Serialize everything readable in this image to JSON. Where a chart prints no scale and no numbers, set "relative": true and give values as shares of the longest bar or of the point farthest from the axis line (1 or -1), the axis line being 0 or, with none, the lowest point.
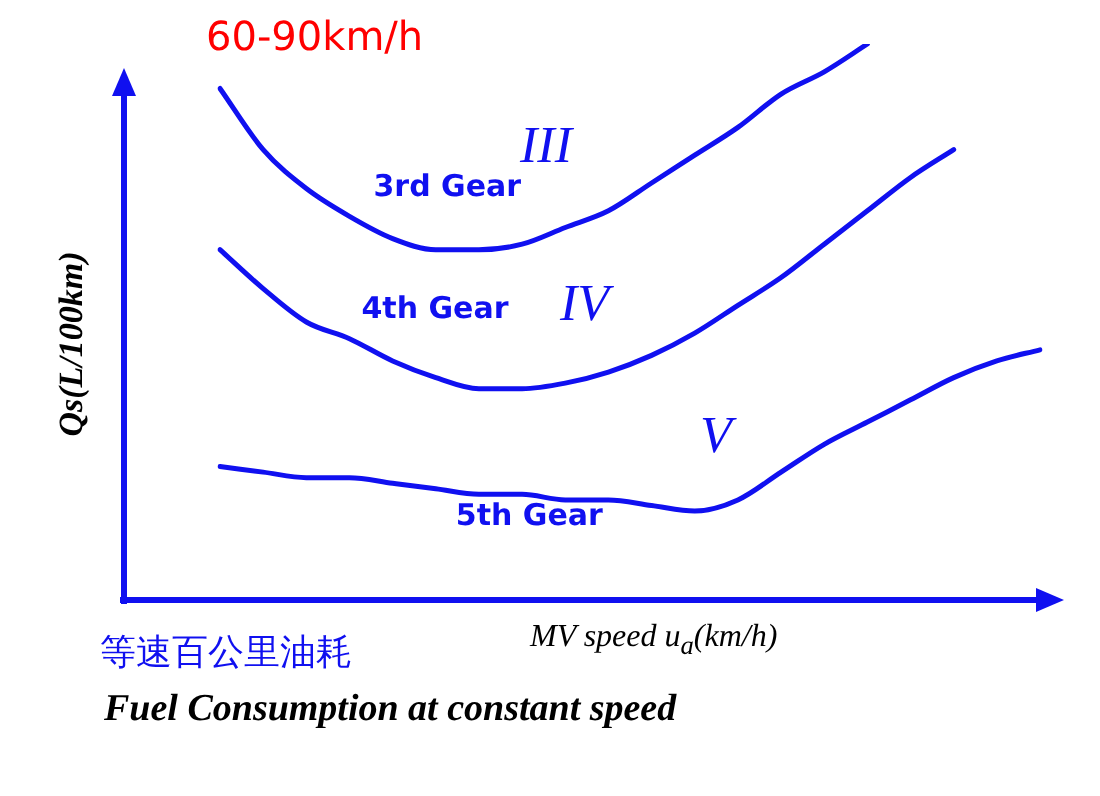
{
  "chart_data": {
    "type": "line",
    "relative": true,
    "ylabel": "Qs(L/100km)",
    "xlabel": "MV speed  u$_{a}$(km/h)",
    "categories": [
      null,
      null,
      null,
      null,
      null,
      null,
      null,
      null,
      null,
      null,
      null,
      null,
      null,
      null,
      null,
      null,
      null,
      null,
      null,
      null
    ],
    "series": [
      {
        "name": "3rd Gear",
        "color": "#1010f0",
        "values": [
          0.92,
          0.81,
          0.74,
          0.69,
          0.65,
          0.63,
          0.63,
          0.64,
          0.67,
          0.7,
          0.75,
          0.8,
          0.85,
          0.91,
          0.95,
          1,
          null,
          null,
          null,
          null
        ]
      },
      {
        "name": "4th Gear",
        "color": "#1010f0",
        "values": [
          0.63,
          0.56,
          0.5,
          0.47,
          0.43,
          0.4,
          0.38,
          0.38,
          0.39,
          0.41,
          0.44,
          0.48,
          0.53,
          0.58,
          0.64,
          0.7,
          0.76,
          0.81,
          null,
          null
        ]
      },
      {
        "name": "5th Gear",
        "color": "#1010f0",
        "values": [
          0.24,
          0.23,
          0.22,
          0.22,
          0.21,
          0.2,
          0.19,
          0.19,
          0.18,
          0.18,
          0.17,
          0.16,
          0.18,
          0.23,
          0.28,
          0.32,
          0.36,
          0.4,
          0.43,
          0.45
        ]
      }
    ],
    "annotations": [
      "60-90km/h",
      "III",
      "IV",
      "V",
      "等速百公里油耗",
      "Fuel Consumption at constant speed"
    ],
    "legend": false,
    "marker": "none",
    "line_style": "solid"
  }
}
